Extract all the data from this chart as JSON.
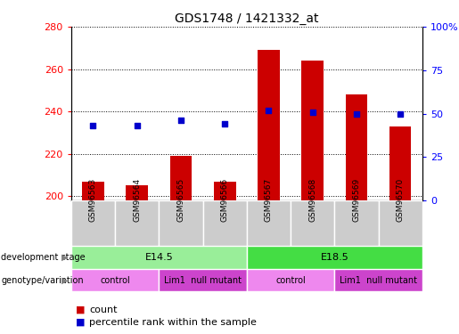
{
  "title": "GDS1748 / 1421332_at",
  "samples": [
    "GSM96563",
    "GSM96564",
    "GSM96565",
    "GSM96566",
    "GSM96567",
    "GSM96568",
    "GSM96569",
    "GSM96570"
  ],
  "count_values": [
    207,
    205,
    219,
    207,
    269,
    264,
    248,
    233
  ],
  "percentile_values": [
    43,
    43,
    46,
    44,
    52,
    51,
    50,
    50
  ],
  "ylim_left": [
    198,
    280
  ],
  "ylim_right": [
    0,
    100
  ],
  "yticks_left": [
    200,
    220,
    240,
    260,
    280
  ],
  "ytick_labels_left": [
    "200",
    "220",
    "240",
    "260",
    "280"
  ],
  "yticks_right": [
    0,
    25,
    50,
    75,
    100
  ],
  "ytick_labels_right": [
    "0",
    "25",
    "50",
    "75",
    "100%"
  ],
  "bar_color": "#cc0000",
  "dot_color": "#0000cc",
  "dev_stages": [
    {
      "label": "E14.5",
      "start": 0,
      "end": 3,
      "color": "#99ee99"
    },
    {
      "label": "E18.5",
      "start": 4,
      "end": 7,
      "color": "#44dd44"
    }
  ],
  "genotypes": [
    {
      "label": "control",
      "start": 0,
      "end": 1,
      "color": "#ee88ee"
    },
    {
      "label": "Lim1  null mutant",
      "start": 2,
      "end": 3,
      "color": "#cc44cc"
    },
    {
      "label": "control",
      "start": 4,
      "end": 5,
      "color": "#ee88ee"
    },
    {
      "label": "Lim1  null mutant",
      "start": 6,
      "end": 7,
      "color": "#cc44cc"
    }
  ],
  "dev_stage_row_label": "development stage",
  "genotype_row_label": "genotype/variation",
  "legend_count_label": "count",
  "legend_percentile_label": "percentile rank within the sample",
  "bar_width": 0.5,
  "sample_box_color": "#cccccc",
  "bar_bottom": 198
}
